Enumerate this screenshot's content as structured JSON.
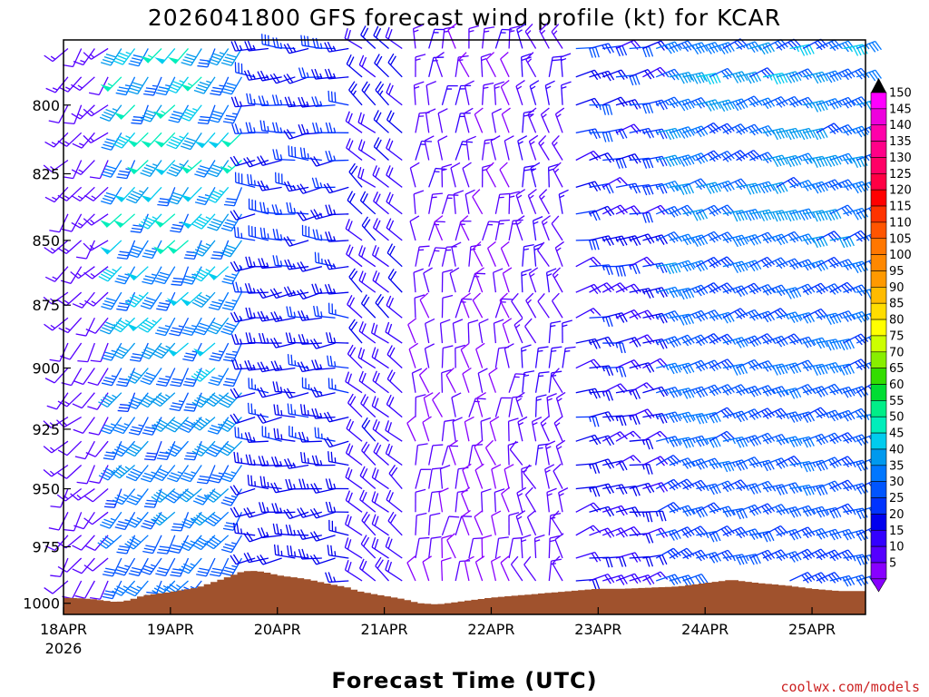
{
  "chart_data": {
    "type": "wind-barb-profile",
    "title": "2026041800 GFS forecast wind profile (kt) for KCAR",
    "xlabel": "Forecast Time (UTC)",
    "ylabel": "",
    "y_units": "hPa",
    "y_range": [
      1005,
      777
    ],
    "y_ticks": [
      800,
      825,
      850,
      875,
      900,
      925,
      950,
      975,
      1000
    ],
    "y_tick_labels": [
      "800",
      "825",
      "850",
      "875",
      "900",
      "925",
      "950",
      "975",
      "1000"
    ],
    "x_range_hours": [
      0,
      180
    ],
    "x_ticks_hours": [
      0,
      24,
      48,
      72,
      96,
      120,
      144,
      168
    ],
    "x_tick_labels": [
      "18APR",
      "19APR",
      "20APR",
      "21APR",
      "22APR",
      "23APR",
      "24APR",
      "25APR"
    ],
    "x_tick_sublabel": "2026",
    "time_step_hours": 3,
    "levels_hpa": [
      780,
      790,
      800,
      810,
      820,
      830,
      840,
      850,
      860,
      870,
      880,
      890,
      900,
      910,
      920,
      930,
      940,
      950,
      960,
      970,
      980,
      990,
      1000
    ],
    "colorbar": {
      "labels": [
        "150",
        "145",
        "140",
        "135",
        "130",
        "125",
        "120",
        "115",
        "110",
        "105",
        "100",
        "95",
        "90",
        "85",
        "80",
        "75",
        "70",
        "65",
        "60",
        "55",
        "50",
        "45",
        "40",
        "35",
        "30",
        "25",
        "20",
        "15",
        "10",
        "5"
      ],
      "colors": [
        "#ff00ff",
        "#ee00dd",
        "#ff00aa",
        "#ff0088",
        "#ff0066",
        "#ff0044",
        "#ff0000",
        "#ff3300",
        "#ff5500",
        "#ff7700",
        "#ff8800",
        "#ff9900",
        "#ffbb00",
        "#ffdd00",
        "#ffff00",
        "#ccff00",
        "#88ee00",
        "#33dd00",
        "#00dd33",
        "#00ee88",
        "#00eebb",
        "#00ccee",
        "#0099ee",
        "#0077ff",
        "#0055ff",
        "#0033ff",
        "#0000ee",
        "#3300ff",
        "#5500ff",
        "#8800ff"
      ],
      "min_kt": 5,
      "max_kt": 150
    },
    "surface_pressure_hpa": [
      {
        "t": 0,
        "p": 997.5
      },
      {
        "t": 6,
        "p": 998
      },
      {
        "t": 12,
        "p": 999.5
      },
      {
        "t": 15,
        "p": 998.5
      },
      {
        "t": 18,
        "p": 996.5
      },
      {
        "t": 24,
        "p": 995
      },
      {
        "t": 30,
        "p": 993
      },
      {
        "t": 36,
        "p": 989
      },
      {
        "t": 40,
        "p": 986
      },
      {
        "t": 42,
        "p": 985.5
      },
      {
        "t": 45,
        "p": 986
      },
      {
        "t": 48,
        "p": 987.5
      },
      {
        "t": 54,
        "p": 989
      },
      {
        "t": 60,
        "p": 991.5
      },
      {
        "t": 64,
        "p": 993
      },
      {
        "t": 66,
        "p": 994.5
      },
      {
        "t": 70,
        "p": 996
      },
      {
        "t": 76,
        "p": 998
      },
      {
        "t": 80,
        "p": 1000
      },
      {
        "t": 84,
        "p": 1000.5
      },
      {
        "t": 90,
        "p": 999
      },
      {
        "t": 96,
        "p": 997.5
      },
      {
        "t": 102,
        "p": 996.5
      },
      {
        "t": 108,
        "p": 995.5
      },
      {
        "t": 114,
        "p": 994.5
      },
      {
        "t": 120,
        "p": 993.5
      },
      {
        "t": 126,
        "p": 993.5
      },
      {
        "t": 132,
        "p": 993
      },
      {
        "t": 138,
        "p": 992.5
      },
      {
        "t": 144,
        "p": 991
      },
      {
        "t": 150,
        "p": 989.5
      },
      {
        "t": 156,
        "p": 991
      },
      {
        "t": 162,
        "p": 992
      },
      {
        "t": 168,
        "p": 993.5
      },
      {
        "t": 174,
        "p": 994.5
      },
      {
        "t": 180,
        "p": 994.5
      }
    ],
    "wind_regimes": [
      {
        "t_start": 0,
        "t_end": 12,
        "speed_low_kt": 10,
        "speed_high_kt": 14,
        "dir_low_deg": 200,
        "dir_high_deg": 240
      },
      {
        "t_start": 12,
        "t_end": 42,
        "speed_low_kt": 18,
        "speed_high_kt": 52,
        "dir_low_deg": 200,
        "dir_high_deg": 230
      },
      {
        "t_start": 42,
        "t_end": 66,
        "speed_low_kt": 18,
        "speed_high_kt": 28,
        "dir_low_deg": 250,
        "dir_high_deg": 285
      },
      {
        "t_start": 66,
        "t_end": 78,
        "speed_low_kt": 15,
        "speed_high_kt": 22,
        "dir_low_deg": 300,
        "dir_high_deg": 320
      },
      {
        "t_start": 78,
        "t_end": 102,
        "speed_low_kt": 5,
        "speed_high_kt": 15,
        "dir_low_deg": 330,
        "dir_high_deg": 20
      },
      {
        "t_start": 102,
        "t_end": 114,
        "speed_low_kt": 8,
        "speed_high_kt": 18,
        "dir_low_deg": 320,
        "dir_high_deg": 10
      },
      {
        "t_start": 114,
        "t_end": 132,
        "speed_low_kt": 10,
        "speed_high_kt": 30,
        "dir_low_deg": 60,
        "dir_high_deg": 90
      },
      {
        "t_start": 132,
        "t_end": 180,
        "speed_low_kt": 20,
        "speed_high_kt": 42,
        "dir_low_deg": 60,
        "dir_high_deg": 80
      }
    ]
  },
  "credit": "coolwx.com/models"
}
